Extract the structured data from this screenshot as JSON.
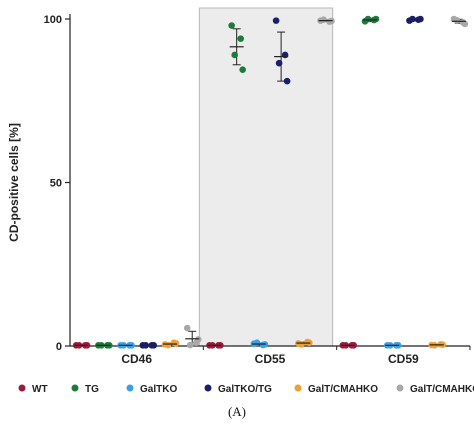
{
  "figure_label": "(A)",
  "chart_data": {
    "type": "scatter",
    "title": "",
    "xlabel": "",
    "ylabel": "CD-positive cells [%]",
    "ylim": [
      0,
      100
    ],
    "yticks": [
      0,
      50,
      100
    ],
    "grid": false,
    "legend_position": "bottom",
    "highlighted_group": "CD55",
    "categories": [
      "CD46",
      "CD55",
      "CD59"
    ],
    "series": [
      {
        "name": "WT",
        "color": "#9b1b3b",
        "points": [
          [
            0.2,
            0.2,
            0.2,
            0.2
          ],
          [
            0.2,
            0.2,
            0.2,
            0.2
          ],
          [
            0.2,
            0.2,
            0.2,
            0.2
          ]
        ],
        "mean": [
          0.2,
          0.2,
          0.2
        ],
        "sd": [
          0,
          0,
          0
        ]
      },
      {
        "name": "TG",
        "color": "#1e7a3c",
        "points": [
          [
            0.2,
            0.2,
            0.2,
            0.2
          ],
          [
            98,
            94,
            89,
            84.5
          ],
          [
            99.3,
            99.7,
            100,
            100
          ]
        ],
        "mean": [
          0.2,
          91.5,
          99.7
        ],
        "sd": [
          0,
          5.5,
          0.5
        ]
      },
      {
        "name": "GalTKO",
        "color": "#3aa1e6",
        "points": [
          [
            0.2,
            0.2,
            0.2,
            0.2
          ],
          [
            0.7,
            0.3,
            1,
            0.5
          ],
          [
            0.2,
            0.2,
            0.2,
            0.2
          ]
        ],
        "mean": [
          0.2,
          0.6,
          0.2
        ],
        "sd": [
          0,
          0.3,
          0
        ]
      },
      {
        "name": "GalTKO/TG",
        "color": "#1a1f6b",
        "points": [
          [
            0.2,
            0.2,
            0.2,
            0.2
          ],
          [
            99.5,
            89,
            86.5,
            81
          ],
          [
            99.5,
            99.8,
            100,
            100
          ]
        ],
        "mean": [
          0.2,
          88.5,
          99.8
        ],
        "sd": [
          0,
          7.5,
          0.4
        ]
      },
      {
        "name": "GalT/CMAHKO",
        "color": "#f0a033",
        "points": [
          [
            0.5,
            1,
            0.3,
            0.8
          ],
          [
            0.8,
            1.2,
            0.5,
            1
          ],
          [
            0.3,
            0.5,
            0.2,
            0.4
          ]
        ],
        "mean": [
          0.6,
          0.9,
          0.35
        ],
        "sd": [
          0.3,
          0.3,
          0.15
        ]
      },
      {
        "name": "GalT/CMAHKO/TG",
        "color": "#a8a8a8",
        "points": [
          [
            5.5,
            1,
            0.3,
            2
          ],
          [
            99.5,
            99.2,
            99.8,
            99.4
          ],
          [
            100,
            99,
            99.6,
            98.5
          ]
        ],
        "mean": [
          2.2,
          99.5,
          99.3
        ],
        "sd": [
          2.3,
          0.3,
          0.6
        ]
      }
    ]
  }
}
